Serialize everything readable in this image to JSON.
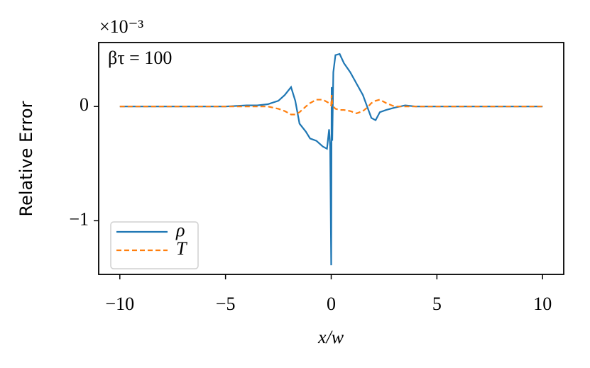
{
  "chart_data": {
    "type": "line",
    "offset_text": "×10⁻³",
    "annotation": "βτ = 100",
    "xlabel": "x/w",
    "ylabel": "Relative Error",
    "x": [
      -10,
      -9,
      -8,
      -7,
      -6,
      -5,
      -4,
      -3.5,
      -3,
      -2.5,
      -2.2,
      -1.9,
      -1.7,
      -1.5,
      -1.2,
      -1,
      -0.7,
      -0.4,
      -0.2,
      -0.1,
      -0.05,
      0,
      0.02,
      0.05,
      0.1,
      0.2,
      0.4,
      0.6,
      0.9,
      1.2,
      1.5,
      1.7,
      1.9,
      2.1,
      2.3,
      2.6,
      3,
      3.5,
      4,
      5,
      6,
      7,
      8,
      9,
      10
    ],
    "series": [
      {
        "name": "ρ",
        "color": "#1f77b4",
        "dash": "solid",
        "values": [
          0,
          0,
          0,
          0,
          0,
          0,
          0.01,
          0.01,
          0.02,
          0.05,
          0.1,
          0.17,
          0.05,
          -0.15,
          -0.22,
          -0.28,
          -0.3,
          -0.35,
          -0.37,
          -0.2,
          -0.35,
          -1.39,
          0.17,
          -0.3,
          0.3,
          0.45,
          0.46,
          0.38,
          0.3,
          0.2,
          0.1,
          0,
          -0.1,
          -0.12,
          -0.05,
          -0.03,
          -0.01,
          0.01,
          0,
          0,
          0,
          0,
          0,
          0,
          0
        ]
      },
      {
        "name": "T",
        "color": "#ff7f0e",
        "dash": "dashed",
        "values": [
          0,
          0,
          0,
          0,
          0,
          0,
          0,
          0,
          0,
          -0.02,
          -0.04,
          -0.07,
          -0.07,
          -0.05,
          0,
          0.03,
          0.06,
          0.06,
          0.04,
          0.03,
          0.02,
          0.01,
          0.1,
          0.02,
          0,
          -0.02,
          -0.03,
          -0.03,
          -0.04,
          -0.06,
          -0.04,
          -0.01,
          0.03,
          0.05,
          0.06,
          0.03,
          0,
          0,
          0,
          0,
          0,
          0,
          0,
          0,
          0
        ]
      }
    ],
    "xlim": [
      -11,
      11
    ],
    "ylim": [
      -1.47,
      0.56
    ],
    "xticks": [
      {
        "value": -10,
        "label": "−10"
      },
      {
        "value": -5,
        "label": "−5"
      },
      0,
      5,
      10
    ],
    "yticks": [
      {
        "value": -1,
        "label": "−1"
      },
      0
    ],
    "grid": false,
    "legend": "lower left"
  }
}
